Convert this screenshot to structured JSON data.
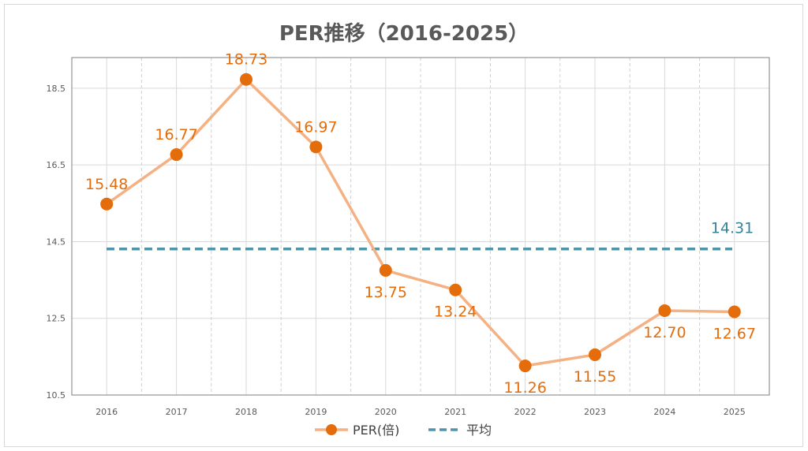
{
  "chart_data": {
    "type": "line",
    "title": "PER推移（2016-2025）",
    "categories": [
      "2016",
      "2017",
      "2018",
      "2019",
      "2020",
      "2021",
      "2022",
      "2023",
      "2024",
      "2025"
    ],
    "series": [
      {
        "name": "PER(倍)",
        "values": [
          15.48,
          16.77,
          18.73,
          16.97,
          13.75,
          13.24,
          11.26,
          11.55,
          12.7,
          12.67
        ],
        "value_labels": [
          "15.48",
          "16.77",
          "18.73",
          "16.97",
          "13.75",
          "13.24",
          "11.26",
          "11.55",
          "12.70",
          "12.67"
        ],
        "color": "#f4b183",
        "marker_color": "#e46c0a",
        "label_color": "#e46c0a"
      },
      {
        "name": "平均",
        "value": 14.31,
        "value_label": "14.31",
        "style": "dashed",
        "color": "#4e94ab",
        "label_color": "#31849b"
      }
    ],
    "y_ticks": [
      "10.5",
      "12.5",
      "14.5",
      "16.5",
      "18.5"
    ],
    "ylim": [
      10.5,
      19.3
    ],
    "grid": true,
    "legend": "bottom"
  }
}
